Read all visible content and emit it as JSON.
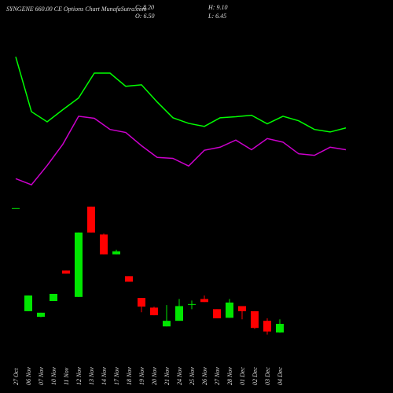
{
  "chart_data": {
    "type": "candlestick",
    "title": "SYNGENE 660.00 CE Options Chart MunafaSutra.com",
    "ohlc_text": [
      "C: 8.20",
      "O: 6.50",
      "H: 9.10",
      "L: 6.45"
    ],
    "categories": [
      "27 Oct",
      "06 Nov",
      "07 Nov",
      "10 Nov",
      "11 Nov",
      "12 Nov",
      "13 Nov",
      "14 Nov",
      "17 Nov",
      "18 Nov",
      "19 Nov",
      "20 Nov",
      "21 Nov",
      "24 Nov",
      "25 Nov",
      "26 Nov",
      "27 Nov",
      "28 Nov",
      "01 Dec",
      "02 Dec",
      "03 Dec",
      "04 Dec"
    ],
    "open": [
      31.0,
      10.7,
      9.6,
      12.7,
      18.7,
      13.5,
      31.3,
      25.8,
      21.9,
      17.6,
      13.3,
      11.4,
      7.7,
      8.8,
      12.0,
      13.1,
      11.1,
      9.4,
      11.7,
      10.7,
      8.8,
      6.5
    ],
    "high": [
      31.0,
      13.8,
      10.4,
      14.1,
      18.7,
      26.2,
      31.3,
      26.0,
      22.8,
      17.6,
      13.3,
      11.6,
      11.9,
      13.1,
      12.8,
      13.8,
      11.1,
      13.1,
      11.7,
      10.7,
      9.3,
      9.1
    ],
    "low": [
      31.0,
      10.7,
      9.5,
      12.7,
      18.1,
      13.5,
      26.2,
      21.9,
      21.9,
      16.5,
      10.5,
      9.9,
      7.7,
      8.8,
      11.1,
      12.5,
      9.3,
      9.4,
      9.1,
      7.2,
      6.1,
      6.45
    ],
    "close": [
      31.0,
      13.8,
      10.4,
      14.1,
      18.1,
      26.2,
      26.2,
      21.9,
      22.5,
      16.5,
      11.6,
      9.9,
      8.8,
      11.7,
      12.1,
      12.5,
      9.3,
      12.4,
      10.7,
      7.4,
      6.7,
      8.2
    ],
    "up_color": "#00e600",
    "down_color": "#ff0000",
    "lines": [
      {
        "color": "#00ff00",
        "values": [
          60.8,
          50.0,
          48.0,
          50.4,
          52.7,
          57.6,
          57.6,
          55.0,
          55.3,
          51.9,
          48.8,
          47.7,
          47.1,
          48.8,
          49.0,
          49.3,
          47.6,
          49.1,
          48.2,
          46.5,
          46.0,
          46.8
        ]
      },
      {
        "color": "#cc00cc",
        "values": [
          36.8,
          35.6,
          39.4,
          43.6,
          49.1,
          48.7,
          46.5,
          45.9,
          43.3,
          41.0,
          40.8,
          39.3,
          42.4,
          43.0,
          44.4,
          42.5,
          44.7,
          44.0,
          41.7,
          41.4,
          43.0,
          42.5
        ]
      }
    ],
    "ylim": [
      0,
      72
    ]
  }
}
